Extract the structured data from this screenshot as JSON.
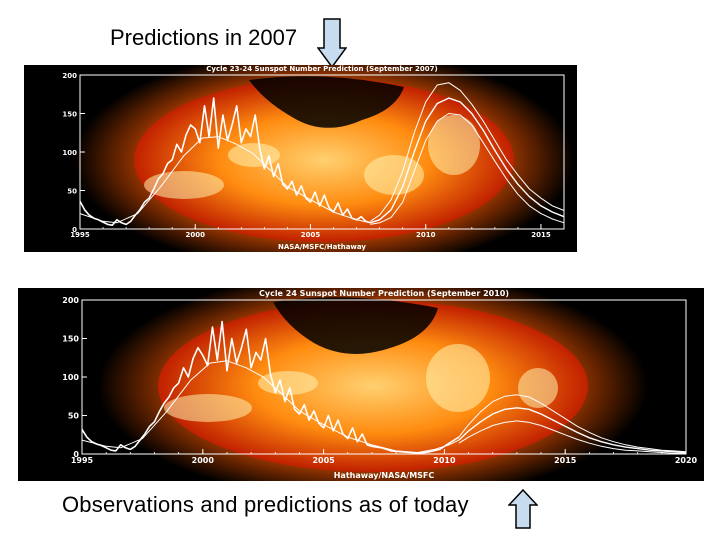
{
  "captions": {
    "top": "Predictions in 2007",
    "bottom": "Observations and predictions as of today"
  },
  "icons": {
    "arrow": "down-arrow-icon",
    "arrow_up": "up-arrow-icon"
  },
  "colors": {
    "arrow_fill": "#c8dcf0",
    "arrow_stroke": "#000000",
    "plot_line": "#ffffff",
    "sun_core": "#ffd070",
    "sun_edge": "#c02000",
    "corona": "#ff5a00",
    "background": "#000000"
  },
  "chart_data": [
    {
      "type": "line",
      "title": "Cycle 23-24 Sunspot Number Prediction (September 2007)",
      "credit": "NASA/MSFC/Hathaway",
      "xlim": [
        1995,
        2016
      ],
      "ylim": [
        0,
        200
      ],
      "xticks": [
        1995,
        2000,
        2005,
        2010,
        2015
      ],
      "xtick_labels": [
        "1995",
        "2000",
        "2005",
        "2010",
        "2015"
      ],
      "yticks": [
        0,
        50,
        100,
        150,
        200
      ],
      "ytick_labels": [
        "0",
        "50",
        "100",
        "150",
        "200"
      ],
      "series": [
        {
          "name": "observed monthly",
          "style": "solid",
          "x": [
            1995.0,
            1995.2,
            1995.4,
            1995.6,
            1995.8,
            1996.0,
            1996.2,
            1996.4,
            1996.6,
            1996.8,
            1997.0,
            1997.2,
            1997.4,
            1997.6,
            1997.8,
            1998.0,
            1998.2,
            1998.4,
            1998.6,
            1998.8,
            1999.0,
            1999.2,
            1999.4,
            1999.6,
            1999.8,
            2000.0,
            2000.2,
            2000.4,
            2000.6,
            2000.8,
            2001.0,
            2001.2,
            2001.4,
            2001.6,
            2001.8,
            2002.0,
            2002.2,
            2002.4,
            2002.6,
            2002.8,
            2003.0,
            2003.2,
            2003.4,
            2003.6,
            2003.8,
            2004.0,
            2004.2,
            2004.4,
            2004.6,
            2004.8,
            2005.0,
            2005.2,
            2005.4,
            2005.6,
            2005.8,
            2006.0,
            2006.2,
            2006.4,
            2006.6,
            2006.8,
            2007.0,
            2007.2,
            2007.4,
            2007.6
          ],
          "y": [
            36,
            25,
            18,
            14,
            12,
            9,
            6,
            5,
            12,
            8,
            6,
            10,
            18,
            25,
            35,
            40,
            52,
            65,
            72,
            85,
            90,
            110,
            100,
            122,
            135,
            130,
            112,
            160,
            120,
            170,
            105,
            148,
            115,
            135,
            160,
            112,
            130,
            120,
            148,
            104,
            78,
            95,
            68,
            85,
            58,
            52,
            62,
            44,
            56,
            40,
            35,
            48,
            30,
            44,
            28,
            22,
            34,
            18,
            26,
            14,
            12,
            16,
            10,
            8
          ]
        },
        {
          "name": "smoothed",
          "style": "solid",
          "x": [
            1995.0,
            1996.0,
            1996.6,
            1997.5,
            1998.5,
            1999.5,
            2000.3,
            2001.0,
            2001.8,
            2002.5,
            2003.2,
            2004.0,
            2005.0,
            2006.0,
            2007.0,
            2007.6
          ],
          "y": [
            20,
            10,
            8,
            20,
            55,
            95,
            118,
            120,
            110,
            98,
            78,
            55,
            38,
            22,
            12,
            8
          ]
        },
        {
          "name": "prediction",
          "style": "solid",
          "x": [
            2007.6,
            2008.0,
            2008.5,
            2009.0,
            2009.5,
            2010.0,
            2010.5,
            2011.0,
            2011.5,
            2012.0,
            2012.5,
            2013.0,
            2013.5,
            2014.0,
            2014.5,
            2015.0,
            2015.5,
            2016.0
          ],
          "y": [
            8,
            12,
            25,
            55,
            100,
            140,
            163,
            170,
            165,
            150,
            128,
            102,
            78,
            58,
            42,
            30,
            22,
            16
          ]
        },
        {
          "name": "prediction upper",
          "style": "solid",
          "x": [
            2007.6,
            2008.0,
            2008.5,
            2009.0,
            2009.5,
            2010.0,
            2010.5,
            2011.0,
            2011.5,
            2012.0,
            2012.5,
            2013.0,
            2013.5,
            2014.0,
            2014.5,
            2015.0,
            2015.5,
            2016.0
          ],
          "y": [
            10,
            18,
            38,
            75,
            125,
            165,
            187,
            190,
            180,
            162,
            140,
            115,
            90,
            70,
            52,
            40,
            30,
            24
          ]
        },
        {
          "name": "prediction lower",
          "style": "solid",
          "x": [
            2007.6,
            2008.0,
            2008.5,
            2009.0,
            2009.5,
            2010.0,
            2010.5,
            2011.0,
            2011.5,
            2012.0,
            2012.5,
            2013.0,
            2013.5,
            2014.0,
            2014.5,
            2015.0,
            2015.5,
            2016.0
          ],
          "y": [
            6,
            8,
            15,
            35,
            75,
            115,
            140,
            150,
            148,
            135,
            112,
            88,
            65,
            45,
            30,
            20,
            13,
            8
          ]
        }
      ]
    },
    {
      "type": "line",
      "title": "Cycle 24 Sunspot Number Prediction (September 2010)",
      "credit": "Hathaway/NASA/MSFC",
      "xlim": [
        1995,
        2020
      ],
      "ylim": [
        0,
        200
      ],
      "xticks": [
        1995,
        2000,
        2005,
        2010,
        2015,
        2020
      ],
      "xtick_labels": [
        "1995",
        "2000",
        "2005",
        "2010",
        "2015",
        "2020"
      ],
      "yticks": [
        0,
        50,
        100,
        150,
        200
      ],
      "ytick_labels": [
        "0",
        "50",
        "100",
        "150",
        "200"
      ],
      "series": [
        {
          "name": "observed monthly",
          "style": "solid",
          "x": [
            1995.0,
            1995.2,
            1995.4,
            1995.6,
            1995.8,
            1996.0,
            1996.2,
            1996.4,
            1996.6,
            1996.8,
            1997.0,
            1997.2,
            1997.4,
            1997.6,
            1997.8,
            1998.0,
            1998.2,
            1998.4,
            1998.6,
            1998.8,
            1999.0,
            1999.2,
            1999.4,
            1999.6,
            1999.8,
            2000.0,
            2000.2,
            2000.4,
            2000.6,
            2000.8,
            2001.0,
            2001.2,
            2001.4,
            2001.6,
            2001.8,
            2002.0,
            2002.2,
            2002.4,
            2002.6,
            2002.8,
            2003.0,
            2003.2,
            2003.4,
            2003.6,
            2003.8,
            2004.0,
            2004.2,
            2004.4,
            2004.6,
            2004.8,
            2005.0,
            2005.2,
            2005.4,
            2005.6,
            2005.8,
            2006.0,
            2006.2,
            2006.4,
            2006.6,
            2006.8,
            2007.0,
            2007.4,
            2007.8,
            2008.2,
            2008.6,
            2009.0,
            2009.4,
            2009.8,
            2010.2,
            2010.6
          ],
          "y": [
            32,
            22,
            16,
            13,
            11,
            8,
            5,
            4,
            12,
            8,
            6,
            10,
            18,
            26,
            36,
            42,
            55,
            66,
            74,
            86,
            92,
            112,
            100,
            124,
            138,
            128,
            115,
            165,
            122,
            172,
            108,
            150,
            118,
            138,
            162,
            112,
            132,
            122,
            150,
            104,
            80,
            96,
            68,
            86,
            58,
            52,
            64,
            44,
            56,
            40,
            34,
            50,
            30,
            44,
            26,
            20,
            34,
            16,
            26,
            12,
            10,
            8,
            4,
            3,
            2,
            1,
            3,
            6,
            14,
            22
          ]
        },
        {
          "name": "smoothed",
          "style": "solid",
          "x": [
            1995.0,
            1996.0,
            1996.6,
            1997.5,
            1998.5,
            1999.5,
            2000.3,
            2001.0,
            2001.8,
            2002.5,
            2003.2,
            2004.0,
            2005.0,
            2006.0,
            2007.0,
            2008.0,
            2008.9,
            2009.6,
            2010.2,
            2010.6
          ],
          "y": [
            18,
            10,
            8,
            20,
            55,
            96,
            118,
            121,
            112,
            100,
            80,
            56,
            38,
            22,
            12,
            4,
            2,
            6,
            12,
            18
          ]
        },
        {
          "name": "prediction",
          "style": "solid",
          "x": [
            2010.6,
            2011.0,
            2011.5,
            2012.0,
            2012.5,
            2013.0,
            2013.5,
            2014.0,
            2014.5,
            2015.0,
            2015.5,
            2016.0,
            2016.5,
            2017.0,
            2017.5,
            2018.0,
            2018.5,
            2019.0,
            2019.5,
            2020.0
          ],
          "y": [
            18,
            30,
            42,
            52,
            58,
            60,
            58,
            52,
            44,
            36,
            28,
            21,
            16,
            12,
            9,
            7,
            5,
            4,
            3,
            2
          ]
        },
        {
          "name": "prediction upper",
          "style": "solid",
          "x": [
            2010.6,
            2011.0,
            2011.5,
            2012.0,
            2012.5,
            2013.0,
            2013.5,
            2014.0,
            2014.5,
            2015.0,
            2015.5,
            2016.0,
            2016.5,
            2017.0,
            2017.5,
            2018.0,
            2018.5,
            2019.0,
            2019.5,
            2020.0
          ],
          "y": [
            22,
            38,
            55,
            68,
            75,
            77,
            74,
            66,
            56,
            46,
            36,
            28,
            21,
            16,
            12,
            9,
            7,
            5,
            4,
            3
          ]
        },
        {
          "name": "prediction lower",
          "style": "solid",
          "x": [
            2010.6,
            2011.0,
            2011.5,
            2012.0,
            2012.5,
            2013.0,
            2013.5,
            2014.0,
            2014.5,
            2015.0,
            2015.5,
            2016.0,
            2016.5,
            2017.0,
            2017.5,
            2018.0,
            2018.5,
            2019.0,
            2019.5,
            2020.0
          ],
          "y": [
            14,
            22,
            30,
            37,
            41,
            43,
            41,
            37,
            31,
            25,
            19,
            14,
            10,
            7,
            5,
            4,
            3,
            2,
            1,
            1
          ]
        }
      ]
    }
  ]
}
